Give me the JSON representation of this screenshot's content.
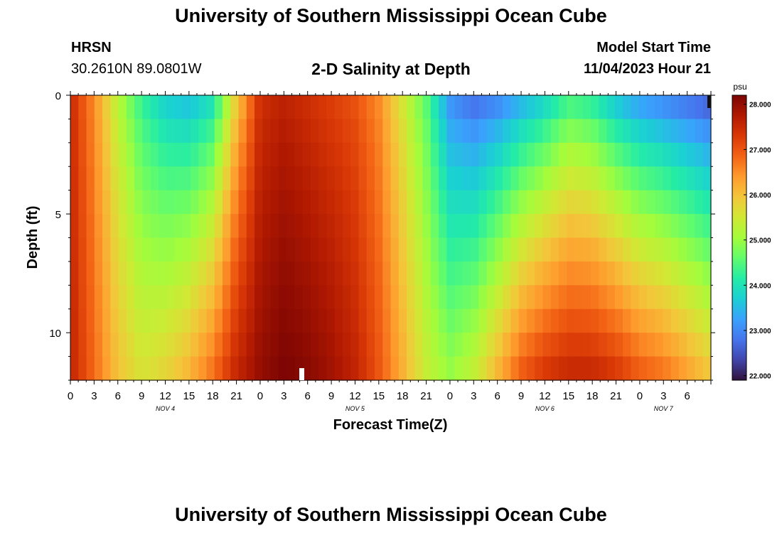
{
  "titles": {
    "top": "University of Southern Mississippi Ocean Cube",
    "bottom": "University of Southern Mississippi Ocean Cube"
  },
  "header": {
    "station": "HRSN",
    "coords": "30.2610N  89.0801W",
    "plot_title": "2-D Salinity at Depth",
    "model_label": "Model Start Time",
    "model_time": "11/04/2023 Hour 21"
  },
  "colors": {
    "colormap": [
      "#30123b",
      "#4145ab",
      "#4675ed",
      "#39a2fc",
      "#1bcfd4",
      "#24eca6",
      "#61fc6c",
      "#a4fc3b",
      "#d1e834",
      "#f3c63a",
      "#fe9b2d",
      "#f36315",
      "#d93806",
      "#b11901",
      "#7a0403"
    ]
  },
  "chart_data": {
    "type": "heatmap",
    "title": "2-D Salinity at Depth",
    "xlabel": "Forecast Time(Z)",
    "ylabel": "Depth (ft)",
    "colorbar_label": "psu",
    "x_hours_from_start": [
      0,
      81
    ],
    "x_tick_labels": [
      "0",
      "3",
      "6",
      "9",
      "12",
      "15",
      "18",
      "21",
      "0",
      "3",
      "6",
      "9",
      "12",
      "15",
      "18",
      "21",
      "0",
      "3",
      "6",
      "9",
      "12",
      "15",
      "18",
      "21",
      "0",
      "3",
      "6"
    ],
    "date_labels": [
      {
        "hour_offset": 12,
        "label": "NOV 4"
      },
      {
        "hour_offset": 36,
        "label": "NOV 5"
      },
      {
        "hour_offset": 60,
        "label": "NOV 6"
      },
      {
        "hour_offset": 75,
        "label": "NOV 7"
      }
    ],
    "y_tick_labels": [
      "0",
      "5",
      "10"
    ],
    "ylim": [
      0,
      12
    ],
    "color_range": [
      21.9,
      28.2
    ],
    "colorbar_ticks": [
      "22.000",
      "23.000",
      "24.000",
      "25.000",
      "26.000",
      "27.000",
      "28.000"
    ],
    "series_note": "approximate salinity (psu); rows = depth levels 0..12 ft, cols = forecast hours 0..81",
    "depth_levels_ft": [
      0,
      1,
      2,
      3,
      4,
      5,
      6,
      7,
      8,
      9,
      10,
      11,
      12
    ],
    "time_hours": [
      0,
      3,
      6,
      9,
      12,
      15,
      18,
      21,
      24,
      27,
      30,
      33,
      36,
      39,
      42,
      45,
      48,
      51,
      54,
      57,
      60,
      63,
      66,
      69,
      72,
      75,
      78,
      81
    ],
    "surface_values": [
      27.5,
      26.5,
      25.2,
      24.2,
      23.6,
      23.4,
      23.8,
      25.8,
      27.4,
      27.6,
      27.4,
      27.2,
      27.0,
      26.5,
      25.5,
      24.5,
      23.0,
      22.6,
      22.8,
      23.2,
      23.6,
      24.2,
      24.0,
      23.4,
      23.0,
      22.8,
      22.6,
      22.4
    ],
    "bottom_values": [
      27.6,
      26.8,
      26.0,
      25.6,
      25.8,
      26.2,
      26.8,
      27.6,
      28.0,
      28.2,
      28.1,
      27.9,
      27.6,
      27.0,
      26.2,
      25.4,
      25.0,
      25.4,
      26.2,
      27.0,
      27.4,
      27.6,
      27.6,
      27.4,
      27.0,
      26.8,
      26.4,
      26.0
    ]
  }
}
